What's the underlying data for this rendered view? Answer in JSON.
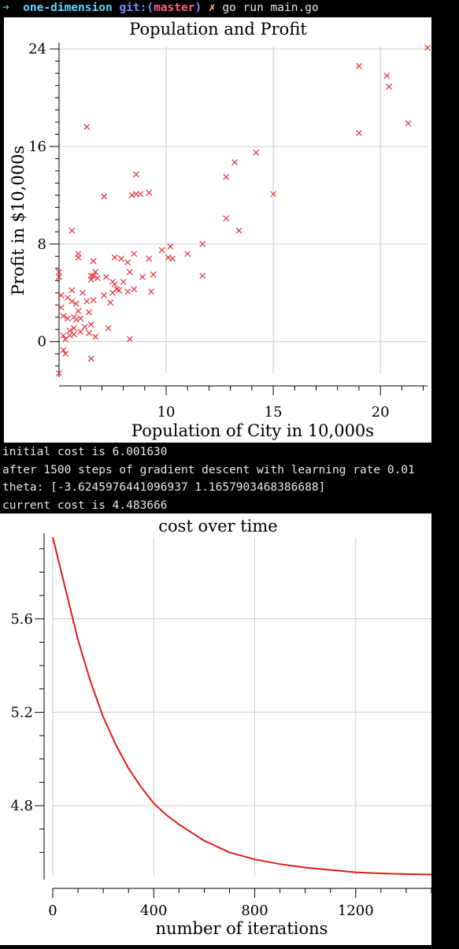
{
  "terminal": {
    "prompt_arrow": "➜",
    "directory": "one-dimension",
    "git_label": "git:(",
    "branch": "master",
    "git_close": ")",
    "dirty_mark": "✗",
    "command": "go run main.go",
    "output_lines": [
      "initial cost is 6.001630",
      "after 1500 steps of gradient descent with learning rate 0.01",
      "theta: [-3.6245976441096937 1.1657903468386688]",
      "current cost is 4.483666"
    ]
  },
  "colors": {
    "marker": "#e8303a",
    "curve": "#e01a1a",
    "grid": "#cccccc"
  },
  "chart_data": [
    {
      "type": "scatter",
      "title": "Population and Profit",
      "xlabel": "Population of City in 10,000s",
      "ylabel": "Profit in $10,000s",
      "xlim": [
        5.0,
        22.2
      ],
      "ylim": [
        -2.6,
        24.2
      ],
      "xticks": [
        10,
        15,
        20
      ],
      "yticks": [
        0,
        8,
        16,
        24
      ],
      "xtick_labels": [
        "10",
        "15",
        "20"
      ],
      "ytick_labels": [
        "0",
        "8",
        "16",
        "24"
      ],
      "grid": true,
      "marker": "x",
      "points": [
        [
          5.0,
          -2.6
        ],
        [
          5.0,
          5.7
        ],
        [
          5.0,
          5.3
        ],
        [
          5.1,
          3.8
        ],
        [
          5.1,
          2.8
        ],
        [
          5.2,
          2.1
        ],
        [
          5.2,
          0.5
        ],
        [
          5.2,
          -0.7
        ],
        [
          5.3,
          -1.0
        ],
        [
          5.3,
          0.2
        ],
        [
          5.4,
          1.9
        ],
        [
          5.4,
          3.6
        ],
        [
          5.5,
          0.9
        ],
        [
          5.5,
          0.5
        ],
        [
          5.6,
          9.1
        ],
        [
          5.6,
          4.2
        ],
        [
          5.6,
          3.3
        ],
        [
          5.7,
          2.0
        ],
        [
          5.7,
          1.1
        ],
        [
          5.7,
          0.6
        ],
        [
          5.8,
          3.1
        ],
        [
          5.8,
          1.8
        ],
        [
          5.9,
          7.2
        ],
        [
          5.9,
          6.9
        ],
        [
          5.9,
          2.5
        ],
        [
          6.0,
          1.9
        ],
        [
          6.0,
          0.8
        ],
        [
          6.1,
          4.0
        ],
        [
          6.2,
          1.2
        ],
        [
          6.3,
          17.6
        ],
        [
          6.3,
          3.3
        ],
        [
          6.4,
          2.4
        ],
        [
          6.4,
          0.7
        ],
        [
          6.5,
          5.4
        ],
        [
          6.5,
          5.1
        ],
        [
          6.5,
          1.4
        ],
        [
          6.5,
          -1.4
        ],
        [
          6.6,
          6.6
        ],
        [
          6.6,
          5.4
        ],
        [
          6.6,
          3.4
        ],
        [
          6.7,
          5.7
        ],
        [
          6.7,
          0.4
        ],
        [
          6.8,
          5.2
        ],
        [
          7.1,
          11.9
        ],
        [
          7.1,
          3.8
        ],
        [
          7.2,
          5.3
        ],
        [
          7.3,
          1.1
        ],
        [
          7.4,
          3.2
        ],
        [
          7.5,
          4.9
        ],
        [
          7.5,
          4.0
        ],
        [
          7.6,
          6.9
        ],
        [
          7.6,
          4.7
        ],
        [
          7.7,
          4.3
        ],
        [
          7.8,
          4.2
        ],
        [
          7.9,
          6.8
        ],
        [
          8.0,
          4.9
        ],
        [
          8.2,
          6.5
        ],
        [
          8.2,
          4.1
        ],
        [
          8.3,
          5.7
        ],
        [
          8.3,
          0.2
        ],
        [
          8.4,
          12.0
        ],
        [
          8.5,
          7.2
        ],
        [
          8.5,
          4.3
        ],
        [
          8.6,
          13.7
        ],
        [
          8.6,
          12.1
        ],
        [
          8.8,
          12.1
        ],
        [
          8.9,
          5.3
        ],
        [
          9.2,
          12.2
        ],
        [
          9.2,
          6.8
        ],
        [
          9.3,
          4.1
        ],
        [
          9.4,
          5.5
        ],
        [
          9.8,
          7.5
        ],
        [
          10.1,
          6.9
        ],
        [
          10.2,
          7.8
        ],
        [
          10.3,
          6.8
        ],
        [
          11.0,
          7.2
        ],
        [
          11.7,
          8.0
        ],
        [
          11.7,
          5.4
        ],
        [
          12.8,
          13.5
        ],
        [
          12.8,
          10.1
        ],
        [
          13.2,
          14.7
        ],
        [
          13.4,
          9.1
        ],
        [
          14.2,
          15.5
        ],
        [
          15.0,
          12.1
        ],
        [
          19.0,
          22.6
        ],
        [
          19.0,
          17.1
        ],
        [
          20.3,
          21.8
        ],
        [
          20.4,
          20.9
        ],
        [
          21.3,
          17.9
        ],
        [
          22.2,
          24.1
        ]
      ]
    },
    {
      "type": "line",
      "title": "cost over time",
      "xlabel": "number of iterations",
      "ylabel": "",
      "xlim": [
        0,
        1500
      ],
      "ylim": [
        4.5,
        5.95
      ],
      "xticks": [
        0,
        400,
        800,
        1200
      ],
      "yticks": [
        4.8,
        5.2,
        5.6
      ],
      "xtick_labels": [
        "0",
        "400",
        "800",
        "1200"
      ],
      "ytick_labels": [
        "4.8",
        "5.2",
        "5.6"
      ],
      "grid": true,
      "series": [
        {
          "x": [
            0,
            50,
            100,
            150,
            200,
            250,
            300,
            350,
            400,
            450,
            500,
            600,
            700,
            800,
            900,
            1000,
            1100,
            1200,
            1300,
            1400,
            1500
          ],
          "values": [
            5.95,
            5.73,
            5.51,
            5.33,
            5.18,
            5.06,
            4.96,
            4.88,
            4.81,
            4.76,
            4.72,
            4.65,
            4.6,
            4.57,
            4.55,
            4.535,
            4.525,
            4.515,
            4.51,
            4.507,
            4.505
          ]
        }
      ]
    }
  ]
}
